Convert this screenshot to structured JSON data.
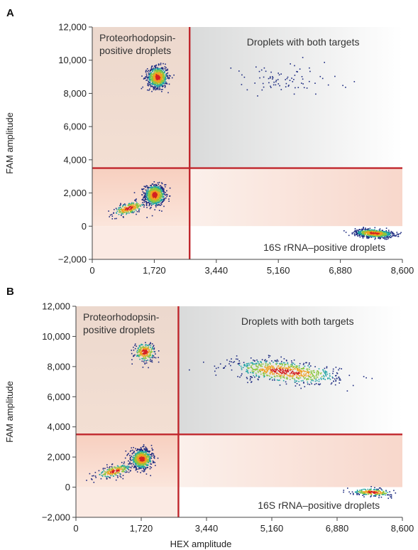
{
  "figure": {
    "xlabel": "HEX amplitude",
    "ylabel": "FAM amplitude"
  },
  "chart_data": [
    {
      "panel": "A",
      "type": "scatter",
      "title": "",
      "xlabel": "",
      "ylabel": "FAM amplitude",
      "xlim": [
        0,
        8600
      ],
      "ylim": [
        -2000,
        12000
      ],
      "xticks": [
        0,
        1720,
        3440,
        5160,
        6880,
        8600
      ],
      "xtick_labels": [
        "0",
        "1,720",
        "3,440",
        "5,160",
        "6,880",
        "8,600"
      ],
      "yticks": [
        -2000,
        0,
        2000,
        4000,
        6000,
        8000,
        10000,
        12000
      ],
      "ytick_labels": [
        "−2,000",
        "0",
        "2,000",
        "4,000",
        "6,000",
        "8,000",
        "10,000",
        "12,000"
      ],
      "threshold": {
        "x": 2700,
        "y": 3500,
        "color": "#c0262c"
      },
      "quadrant_labels": {
        "top_left": [
          "Proteorhodopsin-",
          "positive droplets"
        ],
        "top_right": "Droplets with both targets",
        "bottom_right": "16S rRNA–positive droplets"
      },
      "clusters": [
        {
          "label": "negative",
          "center": [
            1720,
            1900
          ],
          "density": "high"
        },
        {
          "label": "negative tail",
          "center": [
            1000,
            1100
          ],
          "density": "medium"
        },
        {
          "label": "proteorhodopsin-positive",
          "center": [
            1800,
            9000
          ],
          "density": "high"
        },
        {
          "label": "16S rRNA-positive",
          "center": [
            7800,
            -400
          ],
          "density": "high"
        },
        {
          "label": "double-positive",
          "center": [
            5200,
            8800
          ],
          "density": "low"
        }
      ]
    },
    {
      "panel": "B",
      "type": "scatter",
      "title": "",
      "xlabel": "HEX amplitude",
      "ylabel": "FAM amplitude",
      "xlim": [
        0,
        8600
      ],
      "ylim": [
        -2000,
        12000
      ],
      "xticks": [
        0,
        1720,
        3440,
        5160,
        6880,
        8600
      ],
      "xtick_labels": [
        "0",
        "1,720",
        "3,440",
        "5,160",
        "6,880",
        "8,600"
      ],
      "yticks": [
        -2000,
        0,
        2000,
        4000,
        6000,
        8000,
        10000,
        12000
      ],
      "ytick_labels": [
        "−2,000",
        "0",
        "2,000",
        "4,000",
        "6,000",
        "8,000",
        "10,000",
        "12,000"
      ],
      "threshold": {
        "x": 2700,
        "y": 3500,
        "color": "#c0262c"
      },
      "quadrant_labels": {
        "top_left": [
          "Proteorhodopsin-",
          "positive droplets"
        ],
        "top_right": "Droplets with both targets",
        "bottom_right": "16S rRNA–positive droplets"
      },
      "clusters": [
        {
          "label": "negative",
          "center": [
            1720,
            1900
          ],
          "density": "high"
        },
        {
          "label": "negative tail",
          "center": [
            1000,
            1100
          ],
          "density": "medium"
        },
        {
          "label": "proteorhodopsin-positive",
          "center": [
            1800,
            9000
          ],
          "density": "medium"
        },
        {
          "label": "double-positive",
          "center": [
            5500,
            7700
          ],
          "density": "high"
        },
        {
          "label": "16S rRNA-positive",
          "center": [
            7800,
            -300
          ],
          "density": "medium"
        }
      ]
    }
  ]
}
